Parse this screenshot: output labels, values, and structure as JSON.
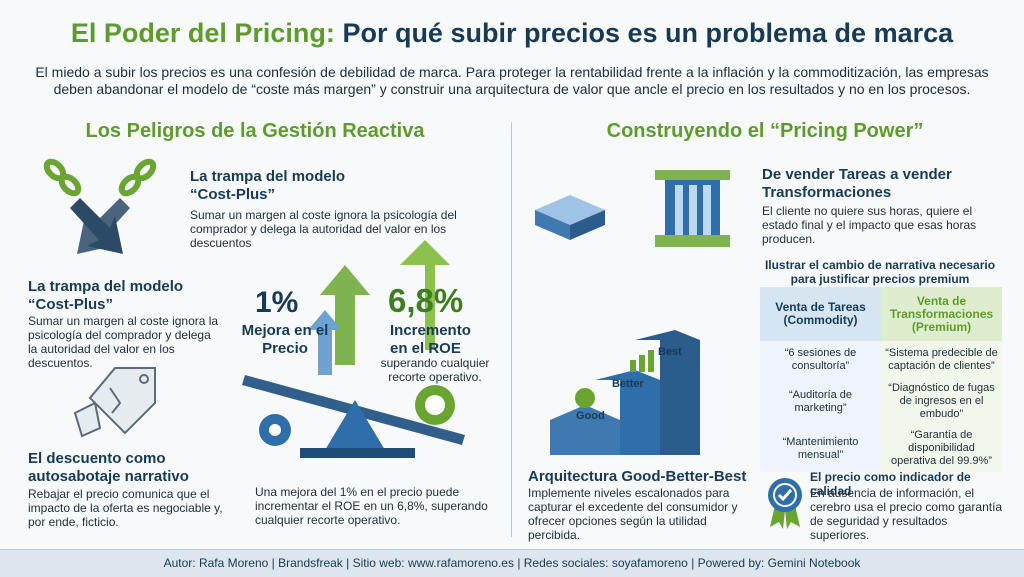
{
  "header": {
    "title_part1": "El Poder del Pricing:",
    "title_part2": "Por qué subir precios es un problema de marca",
    "intro": "El miedo a subir los precios es una confesión de debilidad de marca. Para proteger la rentabilidad frente a la inflación y la commoditización, las empresas deben abandonar el modelo de “coste más margen” y construir una arquitectura de valor que ancle el precio en los resultados y no en los procesos."
  },
  "left": {
    "heading": "Los Peligros de la Gestión Reactiva",
    "items": [
      {
        "title": "La trampa del modelo “Cost-Plus”",
        "text": "Sumar un margen al coste ignora la psicología del comprador y delega la autoridad del valor en los descuentos"
      },
      {
        "title": "La trampa del modelo “Cost-Plus”",
        "text": "Sumar un margen al coste ignora la psicología del comprador y delega la autoridad del valor en los descuentos."
      },
      {
        "title": "El descuento como autosabotaje narrativo",
        "text": "Rebajar el precio comunica que el impacto de la oferta es negociable y, por ende, ficticio."
      }
    ]
  },
  "center": {
    "stat1": {
      "value": "1%",
      "label": "Mejora en el Precio"
    },
    "stat2": {
      "value": "6,8%",
      "label": "Incremento en el ROE",
      "note": "superando cualquier recorte operativo."
    },
    "caption": "Una mejora del 1% en el precio puede incrementar el ROE en un 6,8%, superando cualquier recorte operativo."
  },
  "right": {
    "heading": "Construyendo el “Pricing Power”",
    "block1": {
      "title": "De vender Tareas a vender Transformaciones",
      "text": "El cliente no quiere sus horas, quiere el estado final y el impacto que esas horas producen."
    },
    "table": {
      "title": "Ilustrar el cambio de narrativa necesario para justificar precios premium",
      "headers": [
        [
          "Venta de Tareas",
          "(Commodity)"
        ],
        [
          "Venta de Transformaciones",
          "(Premium)"
        ]
      ],
      "rows": [
        [
          "“6 sesiones de consultoría”",
          "“Sistema predecible de captación de clientes”"
        ],
        [
          "“Auditoría de marketing”",
          "“Diagnóstico de fugas de ingresos en el embudo”"
        ],
        [
          "“Mantenimiento mensual”",
          "“Garantía de disponibilidad operativa del 99.9%”"
        ]
      ]
    },
    "stairs": [
      "Good",
      "Better",
      "Best"
    ],
    "block2": {
      "title": "Arquitectura Good-Better-Best",
      "text": "Implemente niveles escalonados para capturar el excedente del consumidor y ofrecer opciones según la utilidad percibida."
    },
    "block3": {
      "title": "El precio como indicador de calidad",
      "text": "En ausencia de información, el cerebro usa el precio como garantía de seguridad y resultados superiores."
    }
  },
  "footer": "Autor: Rafa Moreno | Brandsfreak | Sitio web: www.rafamoreno.es | Redes sociales: soyafamoreno | Powered by: Gemini Notebook"
}
